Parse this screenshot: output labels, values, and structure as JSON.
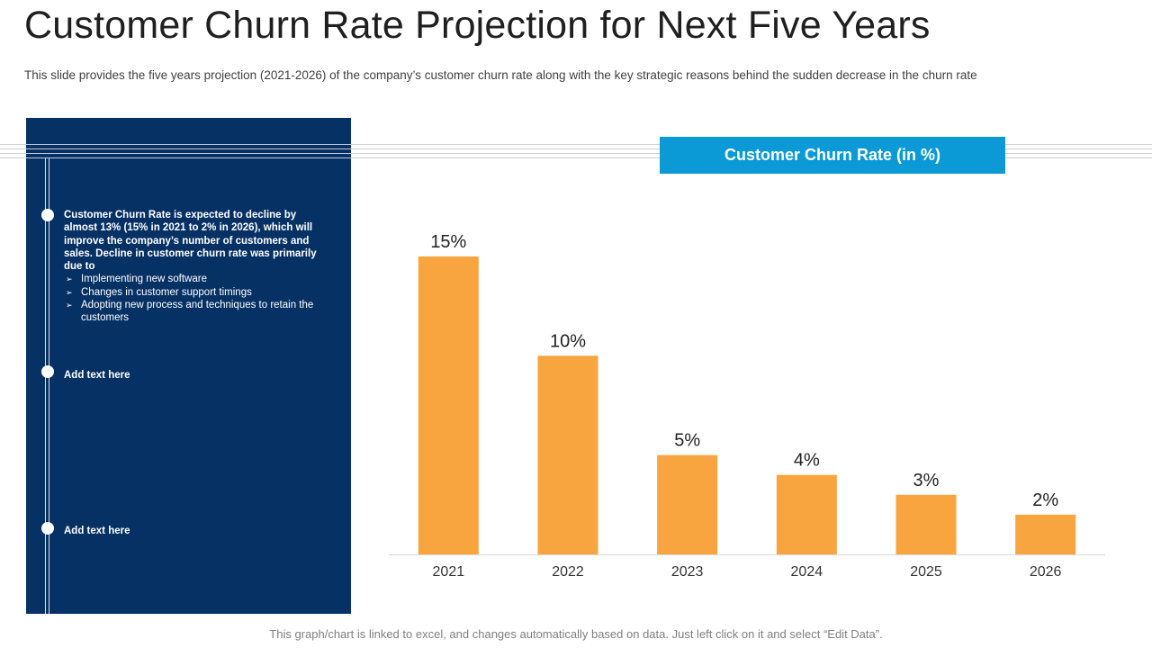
{
  "title": "Customer Churn Rate Projection for Next Five Years",
  "subtitle": "This slide provides the five years projection (2021-2026) of the company’s customer churn rate along with the key strategic reasons behind the sudden decrease in the churn rate",
  "panel": {
    "main_text": "Customer Churn Rate is expected to decline by almost 13% (15% in 2021 to 2% in 2026), which will improve the company’s number of customers and sales. Decline in customer churn rate was primarily due to",
    "sub_items": [
      "Implementing new software",
      "Changes in customer support timings",
      "Adopting new process and techniques to retain the customers"
    ],
    "add_text_1": "Add text here",
    "add_text_2": "Add text here"
  },
  "footer": "This graph/chart is linked to excel,  and changes automatically based on data. Just left click on it and select “Edit Data”.",
  "colors": {
    "panel": "#063165",
    "header": "#0b9ad6",
    "bar": "#f9a53f"
  },
  "chart_data": {
    "type": "bar",
    "title": "Customer Churn Rate (in %)",
    "categories": [
      "2021",
      "2022",
      "2023",
      "2024",
      "2025",
      "2026"
    ],
    "values": [
      15,
      10,
      5,
      4,
      3,
      2
    ],
    "labels": [
      "15%",
      "10%",
      "5%",
      "4%",
      "3%",
      "2%"
    ],
    "xlabel": "",
    "ylabel": "",
    "ylim": [
      0,
      16
    ],
    "grid": false
  }
}
